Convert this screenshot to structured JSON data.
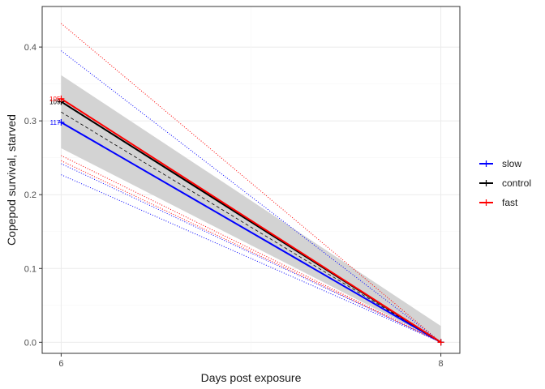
{
  "chart_data": {
    "type": "line",
    "title": "",
    "xlabel": "Days post exposure",
    "ylabel": "Copepod survival, starved",
    "x_ticks": [
      6,
      8
    ],
    "y_ticks": [
      0.0,
      0.1,
      0.2,
      0.3,
      0.4
    ],
    "y_tick_labels": [
      "0.0",
      "0.1",
      "0.2",
      "0.3",
      "0.4"
    ],
    "xlim": [
      5.9,
      8.1
    ],
    "ylim": [
      -0.015,
      0.455
    ],
    "grid": true,
    "legend_position": "right",
    "confidence_band": {
      "color": "#d3d3d3",
      "x": [
        6,
        8
      ],
      "lower": [
        0.263,
        0.0
      ],
      "upper": [
        0.362,
        0.022
      ]
    },
    "overall_fit": {
      "x": [
        6,
        8
      ],
      "y": [
        0.312,
        0.0
      ],
      "color": "#000000",
      "style": "dashed"
    },
    "series": [
      {
        "name": "slow",
        "color": "#0000ff",
        "x": [
          6,
          8
        ],
        "y": [
          0.298,
          0.0
        ],
        "point_label": "117"
      },
      {
        "name": "control",
        "color": "#000000",
        "x": [
          6,
          8
        ],
        "y": [
          0.326,
          0.0
        ],
        "point_label": "109"
      },
      {
        "name": "fast",
        "color": "#ff0000",
        "x": [
          6,
          8
        ],
        "y": [
          0.33,
          0.0
        ],
        "point_label": "105"
      }
    ],
    "individual_lines": [
      {
        "color": "#ff0000",
        "x": [
          6,
          8
        ],
        "y": [
          0.432,
          0.0
        ]
      },
      {
        "color": "#0000ff",
        "x": [
          6,
          8
        ],
        "y": [
          0.395,
          0.0
        ]
      },
      {
        "color": "#ff0000",
        "x": [
          6,
          8
        ],
        "y": [
          0.253,
          0.0
        ]
      },
      {
        "color": "#ff0000",
        "x": [
          6,
          8
        ],
        "y": [
          0.246,
          0.0
        ]
      },
      {
        "color": "#0000ff",
        "x": [
          6,
          8
        ],
        "y": [
          0.242,
          0.0
        ]
      },
      {
        "color": "#0000ff",
        "x": [
          6,
          8
        ],
        "y": [
          0.227,
          0.0
        ]
      }
    ]
  }
}
